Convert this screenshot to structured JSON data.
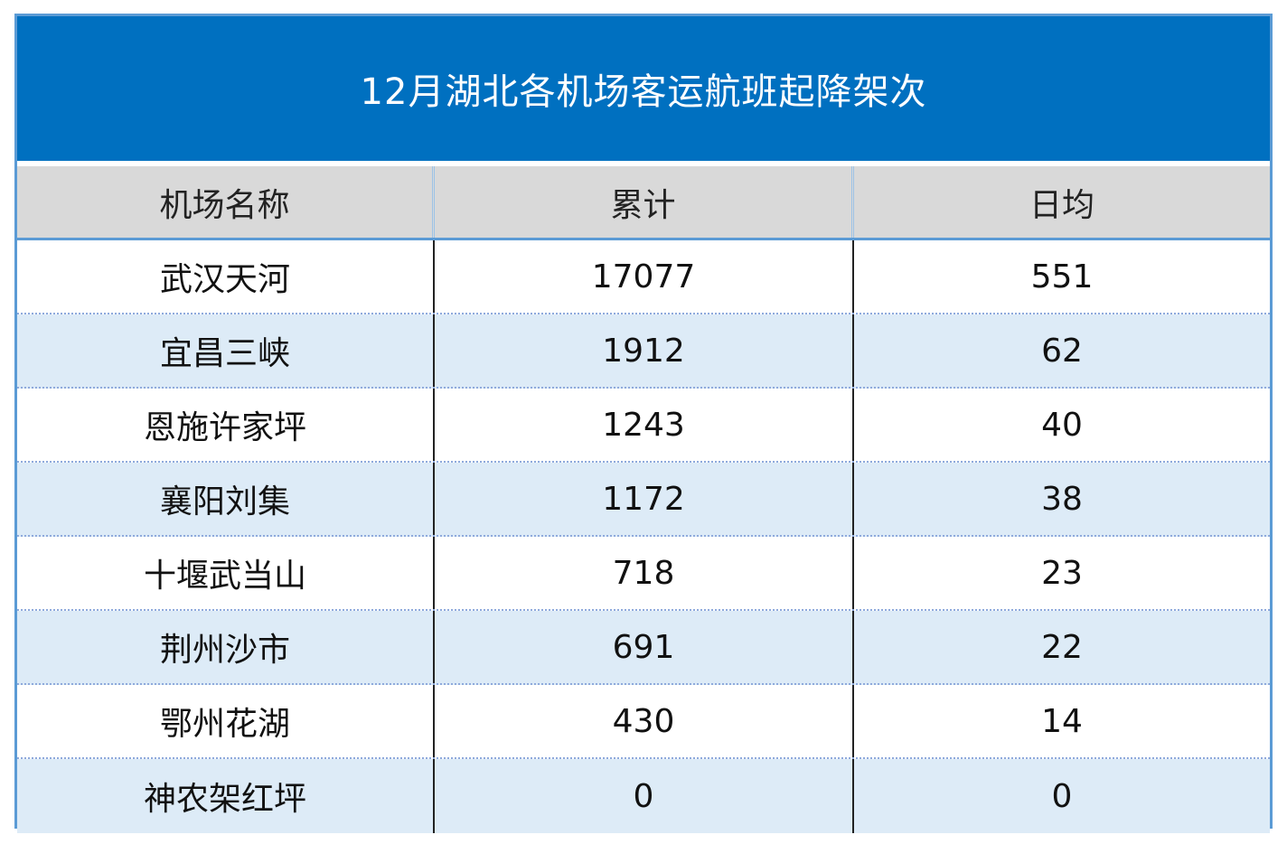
{
  "chart_data": {
    "type": "table",
    "title": "12月湖北各机场客运航班起降架次",
    "columns": [
      "机场名称",
      "累计",
      "日均"
    ],
    "rows": [
      [
        "武汉天河",
        "17077",
        "551"
      ],
      [
        "宜昌三峡",
        "1912",
        "62"
      ],
      [
        "恩施许家坪",
        "1243",
        "40"
      ],
      [
        "襄阳刘集",
        "1172",
        "38"
      ],
      [
        "十堰武当山",
        "718",
        "23"
      ],
      [
        "荆州沙市",
        "691",
        "22"
      ],
      [
        "鄂州花湖",
        "430",
        "14"
      ],
      [
        "神农架红坪",
        "0",
        "0"
      ]
    ]
  },
  "colors": {
    "title_background": "#0070c0",
    "header_background": "#d9d9d9",
    "alt_row_background": "#ddebf7",
    "border": "#5b9bd5"
  }
}
